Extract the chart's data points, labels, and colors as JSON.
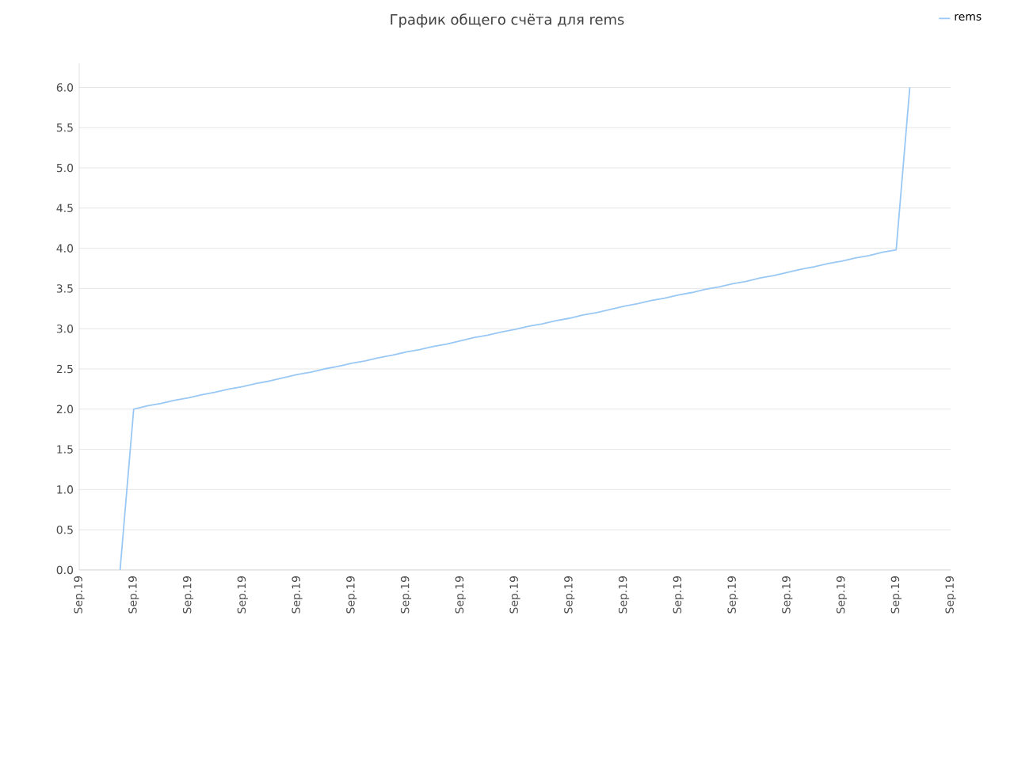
{
  "chart_data": {
    "type": "line",
    "title": "График общего счёта для rems",
    "categories": [
      "Sep.19",
      null,
      null,
      null,
      "Sep.19",
      null,
      null,
      null,
      "Sep.19",
      null,
      null,
      null,
      "Sep.19",
      null,
      null,
      null,
      "Sep.19",
      null,
      null,
      null,
      "Sep.19",
      null,
      null,
      null,
      "Sep.19",
      null,
      null,
      null,
      "Sep.19",
      null,
      null,
      null,
      "Sep.19",
      null,
      null,
      null,
      "Sep.19",
      null,
      null,
      null,
      "Sep.19",
      null,
      null,
      null,
      "Sep.19",
      null,
      null,
      null,
      "Sep.19",
      null,
      null,
      null,
      "Sep.19",
      null,
      null,
      null,
      "Sep.19",
      null,
      null,
      null,
      "Sep.19",
      null,
      null,
      null,
      "Sep.19"
    ],
    "series": [
      {
        "name": "rems",
        "color": "#99c8f5",
        "values": [
          null,
          null,
          null,
          0,
          2.0,
          2.04,
          2.07,
          2.11,
          2.14,
          2.18,
          2.21,
          2.25,
          2.28,
          2.32,
          2.35,
          2.39,
          2.43,
          2.46,
          2.5,
          2.53,
          2.57,
          2.6,
          2.64,
          2.67,
          2.71,
          2.74,
          2.78,
          2.81,
          2.85,
          2.89,
          2.92,
          2.96,
          2.99,
          3.03,
          3.06,
          3.1,
          3.13,
          3.17,
          3.2,
          3.24,
          3.28,
          3.31,
          3.35,
          3.38,
          3.42,
          3.45,
          3.49,
          3.52,
          3.56,
          3.59,
          3.63,
          3.66,
          3.7,
          3.74,
          3.77,
          3.81,
          3.84,
          3.88,
          3.91,
          3.95,
          3.98,
          6.0,
          null,
          null,
          null
        ]
      }
    ],
    "ylim": [
      0,
      6.3
    ],
    "yticks": [
      {
        "value": 0,
        "label": "0.0"
      },
      {
        "value": 0.5,
        "label": "0.5"
      },
      {
        "value": 1,
        "label": "1.0"
      },
      {
        "value": 1.5,
        "label": "1.5"
      },
      {
        "value": 2,
        "label": "2.0"
      },
      {
        "value": 2.5,
        "label": "2.5"
      },
      {
        "value": 3,
        "label": "3.0"
      },
      {
        "value": 3.5,
        "label": "3.5"
      },
      {
        "value": 4,
        "label": "4.0"
      },
      {
        "value": 4.5,
        "label": "4.5"
      },
      {
        "value": 5,
        "label": "5.0"
      },
      {
        "value": 5.5,
        "label": "5.5"
      },
      {
        "value": 6,
        "label": "6.0"
      }
    ],
    "grid": "y",
    "legend": "top right",
    "marker": "none",
    "line_style": "solid"
  }
}
